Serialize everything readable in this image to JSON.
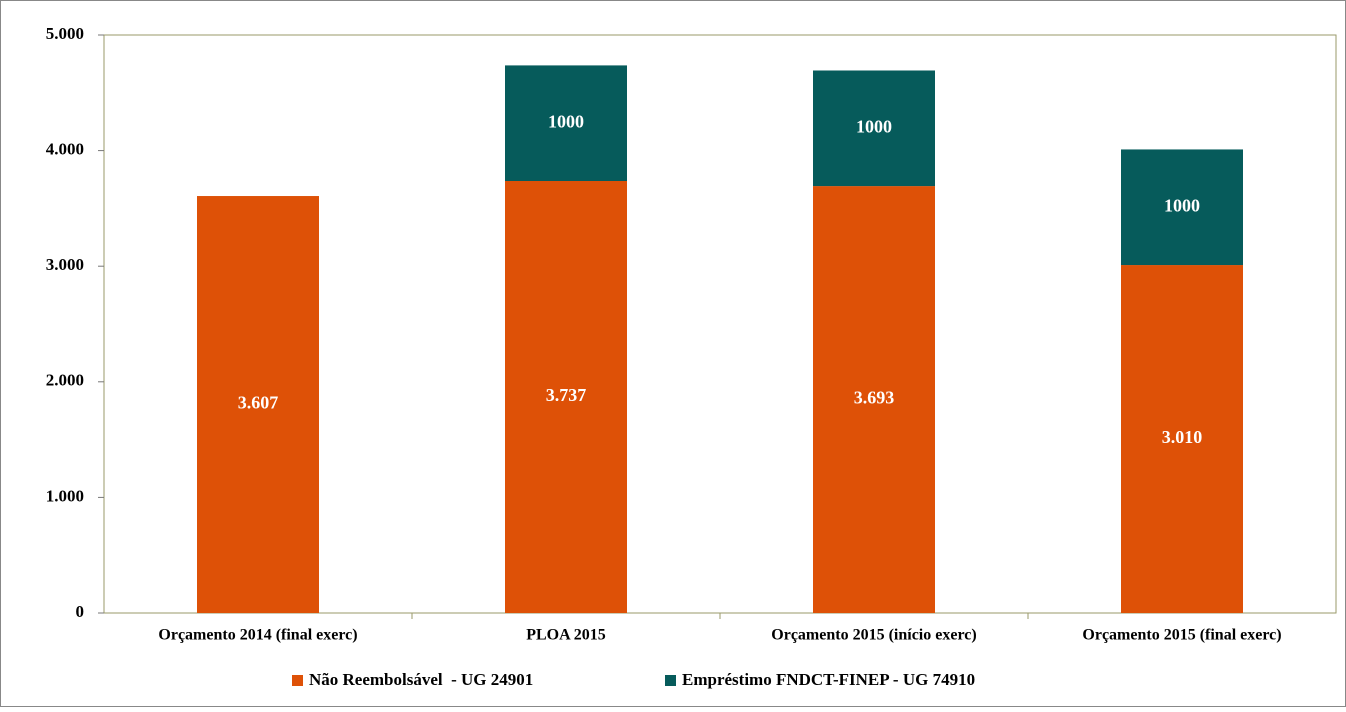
{
  "chart_data": {
    "type": "stacked_bar",
    "categories": [
      "Orçamento 2014 (final exerc)",
      "PLOA 2015",
      "Orçamento 2015 (início exerc)",
      "Orçamento 2015 (final exerc)"
    ],
    "series": [
      {
        "name": "Não Reembolsável  - UG 24901",
        "color": "#de5107",
        "values": [
          3607,
          3737,
          3693,
          3010
        ],
        "value_labels": [
          "3.607",
          "3.737",
          "3.693",
          "3.010"
        ]
      },
      {
        "name": "Empréstimo FNDCT-FINEP - UG 74910",
        "color": "#065b5b",
        "values": [
          null,
          1000,
          1000,
          1000
        ]
      }
    ],
    "ylim": [
      0,
      5000
    ],
    "yticks": [
      0,
      {
        "value": 1000,
        "label": "1.000"
      },
      {
        "value": 2000,
        "label": "2.000"
      },
      {
        "value": 3000,
        "label": "3.000"
      },
      {
        "value": 4000,
        "label": "4.000"
      },
      {
        "value": 5000,
        "label": "5.000"
      }
    ],
    "legend": "bottom"
  }
}
